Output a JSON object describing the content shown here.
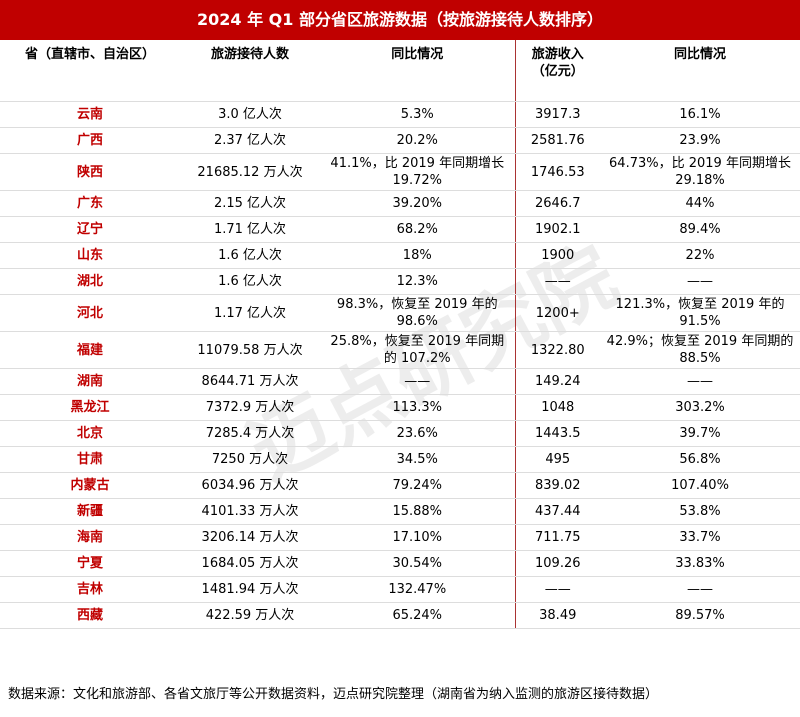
{
  "header": {
    "title": "2024 年 Q1 部分省区旅游数据（按旅游接待人数排序）"
  },
  "table": {
    "columns": [
      "省（直辖市、自治区）",
      "旅游接待人数",
      "同比情况",
      "旅游收入（亿元）",
      "同比情况"
    ],
    "rows": [
      [
        "云南",
        "3.0 亿人次",
        "5.3%",
        "3917.3",
        "16.1%"
      ],
      [
        "广西",
        "2.37 亿人次",
        "20.2%",
        "2581.76",
        "23.9%"
      ],
      [
        "陕西",
        "21685.12 万人次",
        "41.1%，比 2019 年同期增长 19.72%",
        "1746.53",
        "64.73%，比 2019 年同期增长 29.18%"
      ],
      [
        "广东",
        "2.15 亿人次",
        "39.20%",
        "2646.7",
        "44%"
      ],
      [
        "辽宁",
        "1.71 亿人次",
        "68.2%",
        "1902.1",
        "89.4%"
      ],
      [
        "山东",
        "1.6 亿人次",
        "18%",
        "1900",
        "22%"
      ],
      [
        "湖北",
        "1.6 亿人次",
        "12.3%",
        "——",
        "——"
      ],
      [
        "河北",
        "1.17 亿人次",
        "98.3%，恢复至 2019 年的 98.6%",
        "1200+",
        "121.3%，恢复至 2019 年的 91.5%"
      ],
      [
        "福建",
        "11079.58 万人次",
        "25.8%，恢复至 2019 年同期的 107.2%",
        "1322.80",
        "42.9%；恢复至 2019 年同期的 88.5%"
      ],
      [
        "湖南",
        "8644.71 万人次",
        "——",
        "149.24",
        "——"
      ],
      [
        "黑龙江",
        "7372.9 万人次",
        "113.3%",
        "1048",
        "303.2%"
      ],
      [
        "北京",
        "7285.4 万人次",
        "23.6%",
        "1443.5",
        "39.7%"
      ],
      [
        "甘肃",
        "7250 万人次",
        "34.5%",
        "495",
        "56.8%"
      ],
      [
        "内蒙古",
        "6034.96 万人次",
        "79.24%",
        "839.02",
        "107.40%"
      ],
      [
        "新疆",
        "4101.33 万人次",
        "15.88%",
        "437.44",
        "53.8%"
      ],
      [
        "海南",
        "3206.14 万人次",
        "17.10%",
        "711.75",
        "33.7%"
      ],
      [
        "宁夏",
        "1684.05 万人次",
        "30.54%",
        "109.26",
        "33.83%"
      ],
      [
        "吉林",
        "1481.94 万人次",
        "132.47%",
        "——",
        "——"
      ],
      [
        "西藏",
        "422.59 万人次",
        "65.24%",
        "38.49",
        "89.57%"
      ]
    ]
  },
  "watermark": "迈点研究院",
  "footer": "数据来源：文化和旅游部、各省文旅厅等公开数据资料，迈点研究院整理（湖南省为纳入监测的旅游区接待数据）"
}
